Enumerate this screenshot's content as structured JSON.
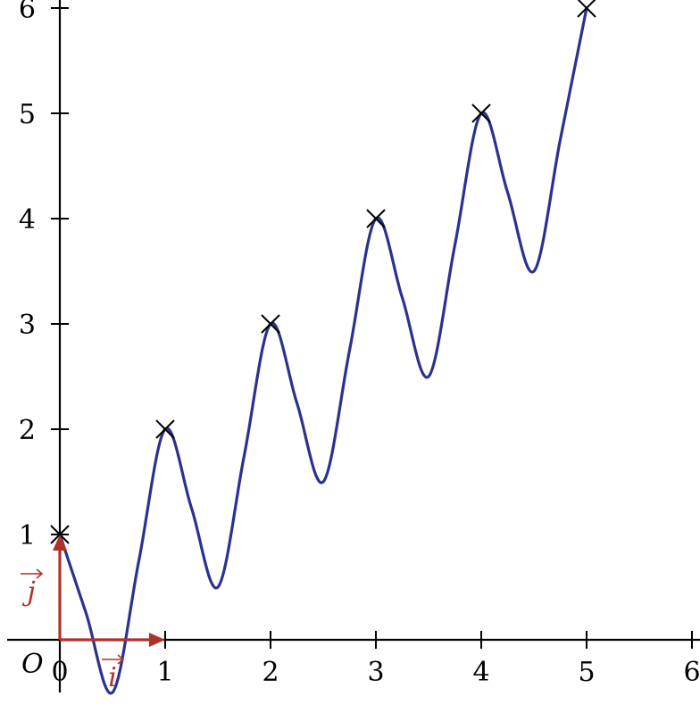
{
  "chart_data": {
    "type": "line",
    "title": "",
    "xlabel": "",
    "ylabel": "",
    "xlim": [
      -0.5,
      6
    ],
    "ylim": [
      -0.5,
      6
    ],
    "x_ticks": [
      0,
      1,
      2,
      3,
      4,
      5,
      6
    ],
    "y_ticks": [
      1,
      2,
      3,
      4,
      5,
      6
    ],
    "x_tick_labels": [
      "0",
      "1",
      "2",
      "3",
      "4",
      "5",
      "6"
    ],
    "y_tick_labels": [
      "1",
      "2",
      "3",
      "4",
      "5",
      "6"
    ],
    "origin_label": "O",
    "grid": false,
    "series": [
      {
        "x": [
          0,
          0.25,
          0.5,
          0.75,
          1,
          1.25,
          1.5,
          1.75,
          2,
          2.25,
          2.5,
          2.75,
          3,
          3.25,
          3.5,
          3.75,
          4,
          4.25,
          4.5,
          4.75,
          5
        ],
        "y": [
          1,
          0.25,
          -0.5,
          0.75,
          2,
          1.25,
          0.5,
          1.75,
          3,
          2.25,
          1.5,
          2.75,
          4,
          3.25,
          2.5,
          3.75,
          5,
          4.25,
          3.5,
          4.75,
          6
        ],
        "color": "#2b3190"
      }
    ],
    "marked_points": [
      {
        "x": 0,
        "y": 1
      },
      {
        "x": 1,
        "y": 2
      },
      {
        "x": 2,
        "y": 3
      },
      {
        "x": 3,
        "y": 4
      },
      {
        "x": 4,
        "y": 5
      },
      {
        "x": 5,
        "y": 6
      }
    ],
    "basis_vectors": [
      {
        "label": "i",
        "dx": 1,
        "dy": 0
      },
      {
        "label": "j",
        "dx": 0,
        "dy": 1
      }
    ],
    "vector_color": "#b0302a"
  }
}
